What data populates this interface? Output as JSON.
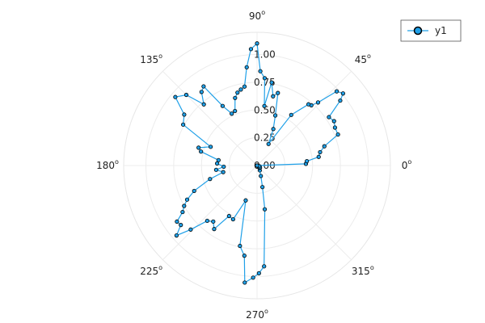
{
  "chart_data": {
    "type": "polar-line",
    "title": "",
    "angle_unit": "degrees",
    "angle_ticks": [
      0,
      45,
      90,
      135,
      180,
      225,
      270,
      315
    ],
    "angle_tick_labels": [
      "0",
      "45",
      "90",
      "135",
      "180",
      "225",
      "270",
      "315"
    ],
    "degree_symbol": "o",
    "radial_ticks": [
      0.0,
      0.25,
      0.5,
      0.75,
      1.0
    ],
    "radial_tick_labels": [
      "0.00",
      "0.25",
      "0.50",
      "0.75",
      "1.00"
    ],
    "rlim": [
      0,
      1.2
    ],
    "grid": true,
    "legend": {
      "position": "top-right"
    },
    "series": [
      {
        "name": "y1",
        "color": "#1fa0e8",
        "marker_color": "#1fa0e8",
        "marker_edge": "#000000",
        "points": [
          [
            0,
            0.0
          ],
          [
            2,
            0.44
          ],
          [
            5,
            0.45
          ],
          [
            8,
            0.56
          ],
          [
            12,
            0.58
          ],
          [
            16,
            0.63
          ],
          [
            21,
            0.78
          ],
          [
            26,
            0.78
          ],
          [
            30,
            0.8
          ],
          [
            34,
            0.78
          ],
          [
            38,
            0.95
          ],
          [
            40,
            1.01
          ],
          [
            43,
            0.98
          ],
          [
            46,
            0.79
          ],
          [
            48,
            0.73
          ],
          [
            50,
            0.72
          ],
          [
            56,
            0.55
          ],
          [
            62,
            0.22
          ],
          [
            66,
            0.36
          ],
          [
            70,
            0.48
          ],
          [
            74,
            0.68
          ],
          [
            77,
            0.64
          ],
          [
            80,
            0.76
          ],
          [
            83,
            0.54
          ],
          [
            85,
            0.79
          ],
          [
            88,
            0.85
          ],
          [
            90,
            1.1
          ],
          [
            93,
            1.05
          ],
          [
            96,
            0.89
          ],
          [
            99,
            0.72
          ],
          [
            102,
            0.7
          ],
          [
            105,
            0.68
          ],
          [
            108,
            0.64
          ],
          [
            112,
            0.53
          ],
          [
            116,
            0.52
          ],
          [
            120,
            0.62
          ],
          [
            124,
            0.86
          ],
          [
            127,
            0.83
          ],
          [
            131,
            0.73
          ],
          [
            135,
            0.9
          ],
          [
            140,
            0.96
          ],
          [
            145,
            0.8
          ],
          [
            151,
            0.76
          ],
          [
            158,
            0.45
          ],
          [
            163,
            0.55
          ],
          [
            166,
            0.52
          ],
          [
            172,
            0.35
          ],
          [
            177,
            0.36
          ],
          [
            182,
            0.3
          ],
          [
            186,
            0.37
          ],
          [
            191,
            0.31
          ],
          [
            196,
            0.44
          ],
          [
            202,
            0.61
          ],
          [
            206,
            0.7
          ],
          [
            209,
            0.75
          ],
          [
            212,
            0.79
          ],
          [
            215,
            0.88
          ],
          [
            218,
            0.87
          ],
          [
            221,
            0.96
          ],
          [
            224,
            0.83
          ],
          [
            228,
            0.67
          ],
          [
            232,
            0.64
          ],
          [
            236,
            0.69
          ],
          [
            241,
            0.52
          ],
          [
            246,
            0.53
          ],
          [
            252,
            0.33
          ],
          [
            258,
            0.74
          ],
          [
            262,
            0.82
          ],
          [
            264,
            1.06
          ],
          [
            268,
            1.01
          ],
          [
            271,
            0.97
          ],
          [
            274,
            0.91
          ],
          [
            280,
            0.4
          ],
          [
            284,
            0.2
          ],
          [
            290,
            0.1
          ],
          [
            300,
            0.05
          ],
          [
            315,
            0.03
          ],
          [
            330,
            0.03
          ],
          [
            345,
            0.02
          ],
          [
            360,
            0.0
          ]
        ]
      }
    ]
  }
}
